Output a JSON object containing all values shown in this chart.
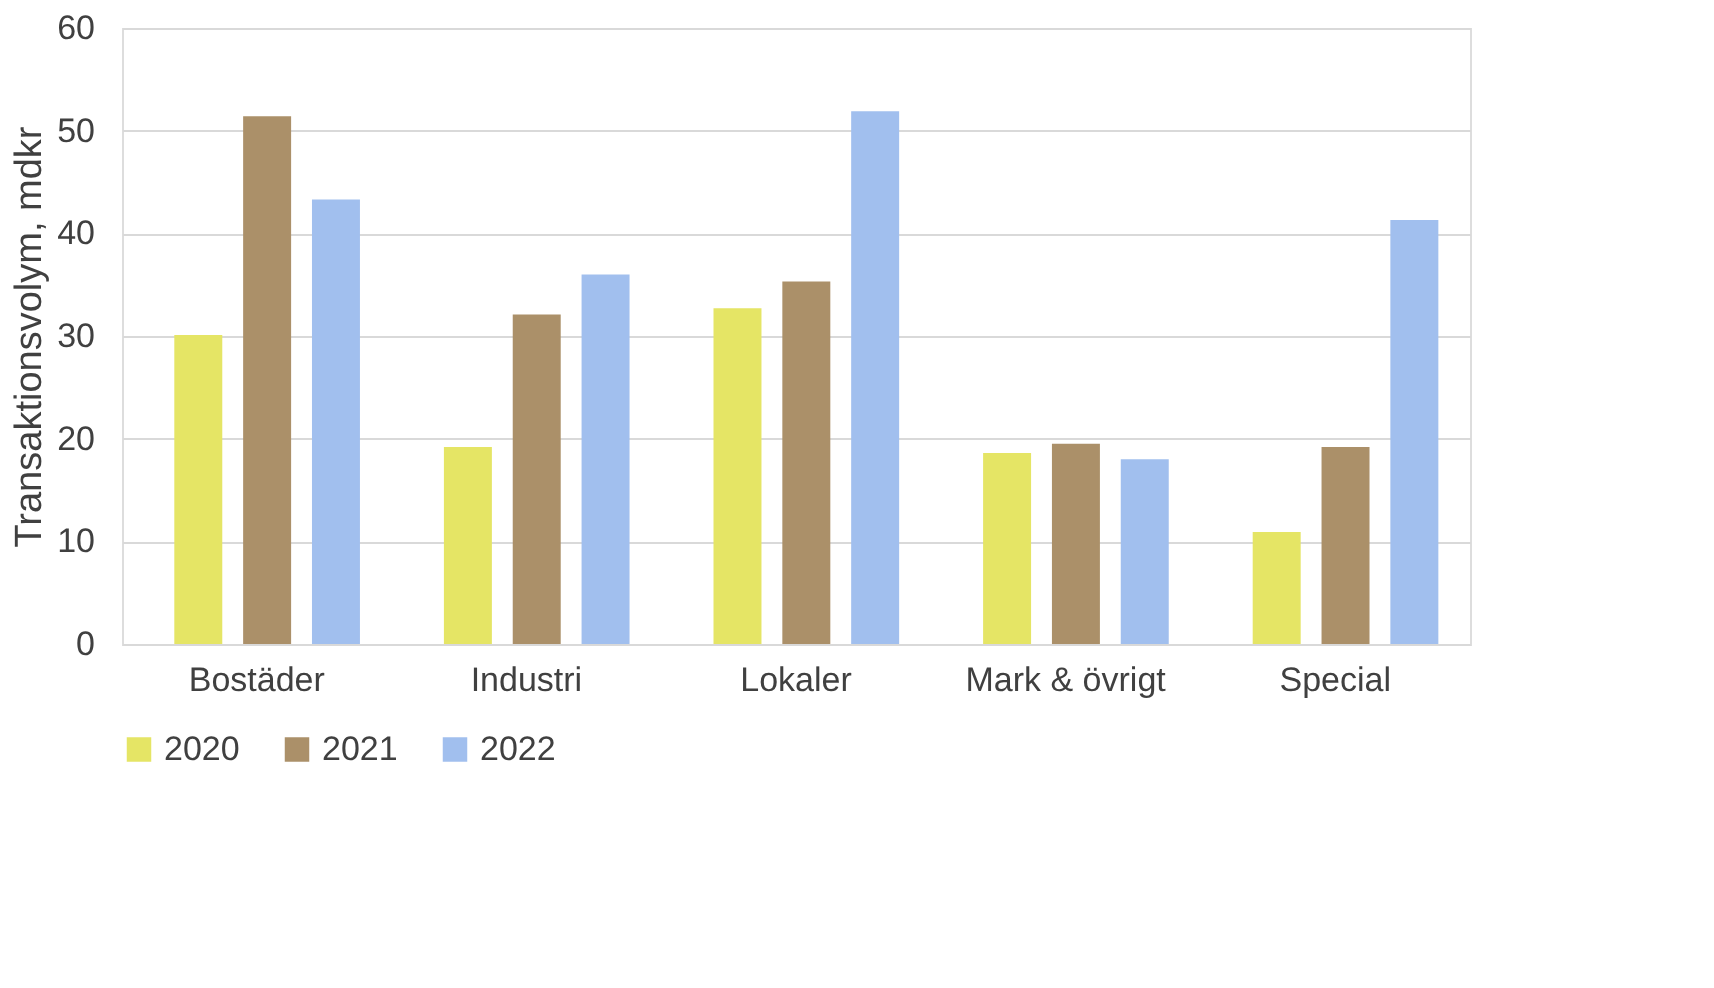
{
  "chart_data": {
    "type": "bar",
    "ylabel": "Transaktionsvolym, mdkr",
    "categories": [
      "Bostäder",
      "Industri",
      "Lokaler",
      "Mark & övrigt",
      "Special"
    ],
    "series": [
      {
        "name": "2020",
        "color": "#e5e565",
        "values": [
          30.1,
          19.2,
          32.7,
          18.6,
          10.9
        ]
      },
      {
        "name": "2021",
        "color": "#ab9069",
        "values": [
          51.4,
          32.1,
          35.3,
          19.5,
          19.2
        ]
      },
      {
        "name": "2022",
        "color": "#a1bfee",
        "values": [
          43.3,
          36.0,
          51.9,
          18.0,
          41.3
        ]
      }
    ],
    "ylim": [
      0,
      60
    ],
    "yticks": [
      0,
      10,
      20,
      30,
      40,
      50,
      60
    ],
    "grid": "y",
    "legend": "bottom"
  }
}
